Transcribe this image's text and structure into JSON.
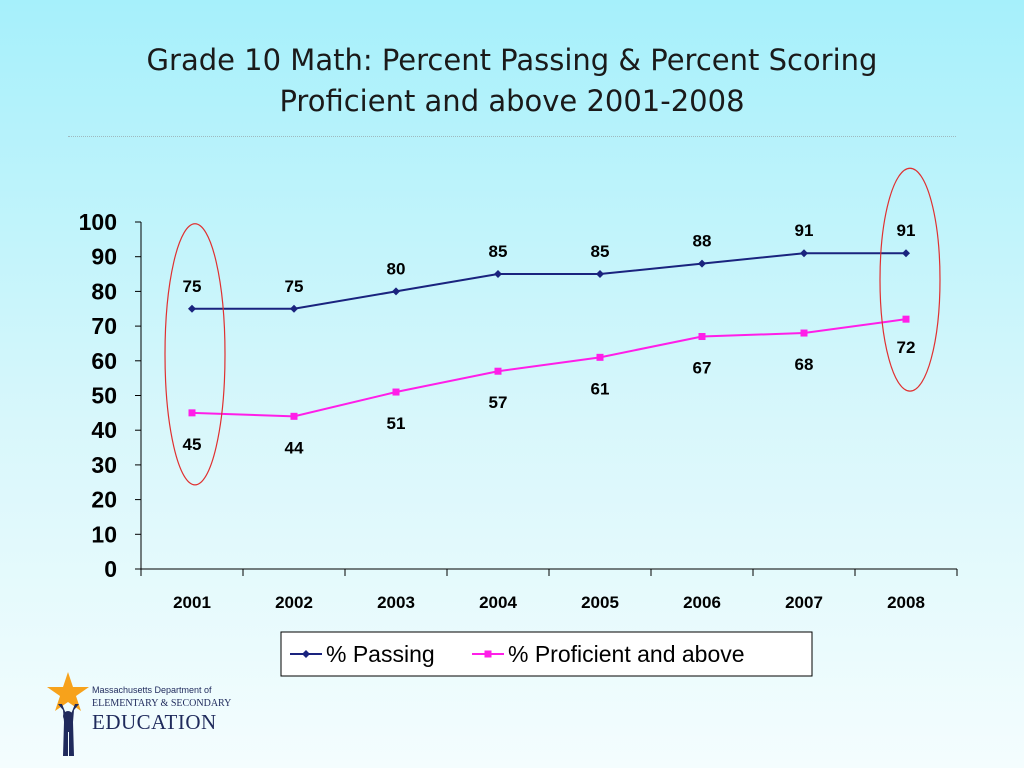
{
  "slide": {
    "title_line1": "Grade 10  Math: Percent Passing & Percent Scoring",
    "title_line2": "Proficient and above 2001-2008"
  },
  "chart_data": {
    "type": "line",
    "categories": [
      "2001",
      "2002",
      "2003",
      "2004",
      "2005",
      "2006",
      "2007",
      "2008"
    ],
    "series": [
      {
        "name": "% Passing",
        "values": [
          75,
          75,
          80,
          85,
          85,
          88,
          91,
          91
        ],
        "color": "#1a237e",
        "marker": "diamond"
      },
      {
        "name": "% Proficient and above",
        "values": [
          45,
          44,
          51,
          57,
          61,
          67,
          68,
          72
        ],
        "color": "#ff1ee8",
        "marker": "square"
      }
    ],
    "ylim": [
      0,
      100
    ],
    "yticks": [
      "0",
      "10",
      "20",
      "30",
      "40",
      "50",
      "60",
      "70",
      "80",
      "90",
      "100"
    ],
    "grid": false,
    "legend_position": "bottom",
    "highlight_color": "#e03030",
    "highlighted_categories": [
      "2001",
      "2008"
    ]
  },
  "logo": {
    "line1": "Massachusetts Department of",
    "line2": "ELEMENTARY & SECONDARY",
    "line3": "EDUCATION",
    "star_color": "#f7a21b",
    "figure_color": "#1f2a5c"
  }
}
